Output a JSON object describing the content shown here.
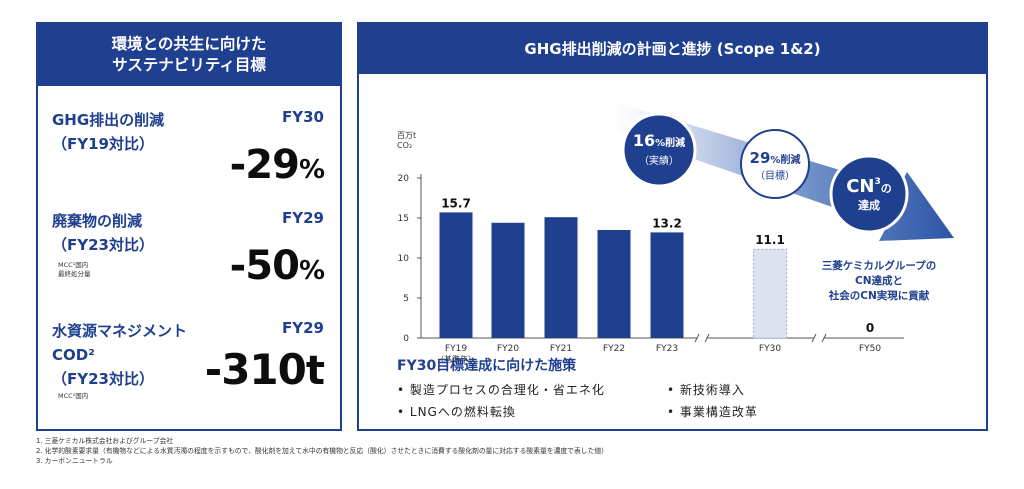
{
  "left_panel": {
    "title_line1": "環境との共生に向けた",
    "title_line2": "サステナビリティ目標",
    "metrics": [
      {
        "label": "GHG排出の削減\n（FY19対比）",
        "year": "FY30",
        "note": "",
        "value": "-29",
        "unit": "%"
      },
      {
        "label": "廃棄物の削減\n（FY23対比）",
        "year": "FY29",
        "note": "MCC¹国内\n最終処分量",
        "value": "-50",
        "unit": "%"
      },
      {
        "label": "水資源マネジメント\nCOD²\n（FY23対比）",
        "year": "FY29",
        "note": "MCC¹国内",
        "value": "-310",
        "unit": "t"
      }
    ]
  },
  "right_panel": {
    "title": "GHG排出削減の計画と進捗 (Scope 1&2)",
    "bubble_actual_pct": "16",
    "bubble_actual_unit": "%削減",
    "bubble_actual_sub": "（実績）",
    "bubble_target_pct": "29",
    "bubble_target_unit": "%削減",
    "bubble_target_sub": "（目標）",
    "bubble_cn": "CN",
    "bubble_cn_sup": "3",
    "bubble_cn_suffix": "の",
    "bubble_cn_sub": "達成",
    "cn_message": [
      "三菱ケミカルグループの",
      "CN達成と",
      "社会のCN実現に貢献"
    ],
    "measures_title": "FY30目標達成に向けた施策",
    "measures": [
      "• 製造プロセスの合理化・省エネ化",
      "• 新技術導入",
      "• LNGへの燃料転換",
      "• 事業構造改革"
    ]
  },
  "chart_data": {
    "type": "bar",
    "unit_label_line1": "百万t",
    "unit_label_line2": "CO₂",
    "ylim": [
      0,
      20
    ],
    "yticks": [
      0,
      5,
      10,
      15,
      20
    ],
    "categories": [
      "FY19",
      "FY20",
      "FY21",
      "FY22",
      "FY23",
      "FY30",
      "FY50"
    ],
    "category_sublabels": [
      "（基準年）",
      "",
      "",
      "",
      "",
      "",
      ""
    ],
    "values": [
      15.7,
      14.4,
      15.1,
      13.5,
      13.2,
      11.1,
      0
    ],
    "data_labels": [
      "15.7",
      "",
      "",
      "",
      "13.2",
      "11.1",
      "0"
    ],
    "bar_styles": [
      "actual",
      "actual",
      "actual",
      "actual",
      "actual",
      "target",
      "target"
    ],
    "colors": {
      "actual": "#1f3f8f",
      "target_fill": "#dde2f1",
      "target_border": "#9aa8d0"
    },
    "grid": false
  },
  "footnotes": [
    "1. 三菱ケミカル株式会社およびグループ会社",
    "2. 化学的酸素要求量（有機物などによる水質汚濁の程度を示すもので、酸化剤を加えて水中の有機物と反応（酸化）させたときに消費する酸化剤の量に対応する酸素量を濃度で表した値）",
    "3. カーボンニュートラル"
  ]
}
